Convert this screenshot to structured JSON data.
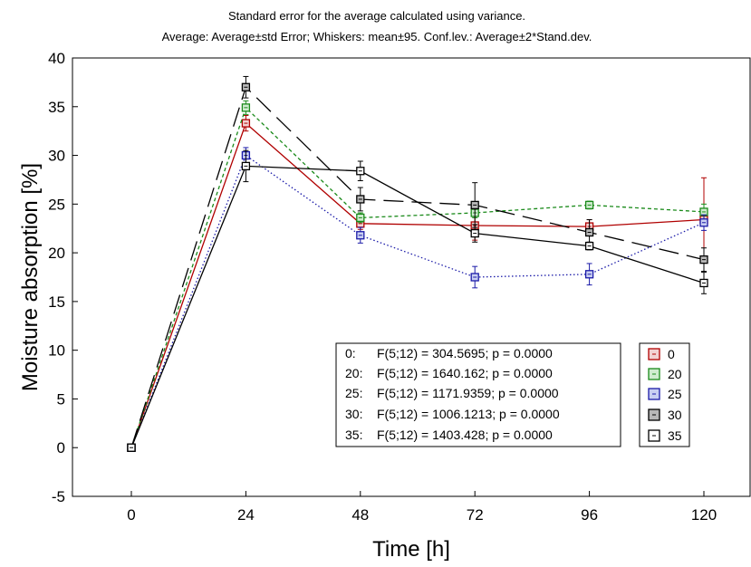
{
  "chart_data": {
    "type": "line",
    "title_line1": "Standard error for the average calculated using variance.",
    "title_line2": "Average: Average±std Error; Whiskers: mean±95. Conf.lev.: Average±2*Stand.dev.",
    "xlabel": "Time [h]",
    "ylabel": "Moisture absorption [%]",
    "x": [
      0,
      24,
      48,
      72,
      96,
      120
    ],
    "x_tick_labels": [
      "0",
      "24",
      "48",
      "72",
      "96",
      "120"
    ],
    "y_ticks": [
      -5,
      0,
      5,
      10,
      15,
      20,
      25,
      30,
      35,
      40
    ],
    "y_tick_labels": [
      "-5",
      "0",
      "5",
      "10",
      "15",
      "20",
      "25",
      "30",
      "35",
      "40"
    ],
    "ylim": [
      -5,
      40
    ],
    "grid": false,
    "legend_position": "bottom-right",
    "series": [
      {
        "name": "0",
        "color": "#b00000",
        "fill": "#f2d3d3",
        "dash": "",
        "values": [
          0,
          33.3,
          23.0,
          22.8,
          22.7,
          23.4
        ],
        "err": [
          0,
          0.8,
          0.6,
          1.5,
          0.7,
          4.3
        ]
      },
      {
        "name": "20",
        "color": "#1a8a1a",
        "fill": "#cfeccf",
        "dash": "4,3",
        "values": [
          0,
          34.9,
          23.6,
          24.1,
          24.9,
          24.2
        ],
        "err": [
          0,
          0.7,
          0.5,
          0.5,
          0.4,
          0.8
        ]
      },
      {
        "name": "25",
        "color": "#1a1aa8",
        "fill": "#c9cff2",
        "dash": "1.5,2.5",
        "values": [
          0,
          30.0,
          21.8,
          17.5,
          17.8,
          23.1
        ],
        "err": [
          0,
          0.8,
          0.8,
          1.1,
          1.1,
          0.8
        ]
      },
      {
        "name": "30",
        "color": "#000000",
        "fill": "#b8b8b8",
        "dash": "22,9",
        "values": [
          0,
          37.0,
          25.5,
          24.9,
          22.1,
          19.3
        ],
        "err": [
          0,
          1.1,
          1.2,
          2.3,
          1.3,
          1.2
        ]
      },
      {
        "name": "35",
        "color": "#000000",
        "fill": "#ffffff",
        "dash": "",
        "values": [
          0,
          28.9,
          28.4,
          22.0,
          20.7,
          16.9
        ],
        "err": [
          0,
          1.6,
          1.0,
          0.9,
          0.4,
          1.1
        ]
      }
    ],
    "stats_box": [
      {
        "label": "0:",
        "text": "F(5;12) = 304.5695; p = 0.0000"
      },
      {
        "label": "20:",
        "text": "F(5;12) = 1640.162; p = 0.0000"
      },
      {
        "label": "25:",
        "text": "F(5;12) = 1171.9359; p = 0.0000"
      },
      {
        "label": "30:",
        "text": "F(5;12) = 1006.1213; p = 0.0000"
      },
      {
        "label": "35:",
        "text": "F(5;12) = 1403.428; p = 0.0000"
      }
    ]
  }
}
